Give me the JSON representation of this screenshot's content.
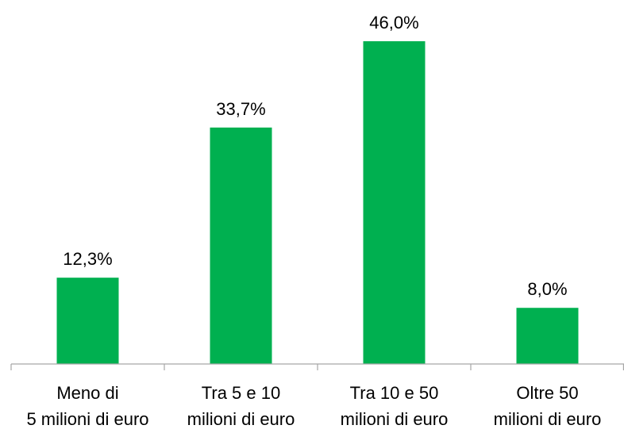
{
  "chart_data": {
    "type": "bar",
    "categories": [
      [
        "Meno di",
        "5 milioni di euro"
      ],
      [
        "Tra 5 e 10",
        "milioni di euro"
      ],
      [
        "Tra 10 e 50",
        "milioni di euro"
      ],
      [
        "Oltre 50",
        "milioni di euro"
      ]
    ],
    "values": [
      12.3,
      33.7,
      46.0,
      8.0
    ],
    "data_labels": [
      "12,3%",
      "33,7%",
      "46,0%",
      "8,0%"
    ],
    "unit": "%",
    "title": "",
    "xlabel": "",
    "ylabel": "",
    "ylim": [
      0,
      46.0
    ],
    "grid": false,
    "legend": "none",
    "bar_color": "#00b050"
  }
}
